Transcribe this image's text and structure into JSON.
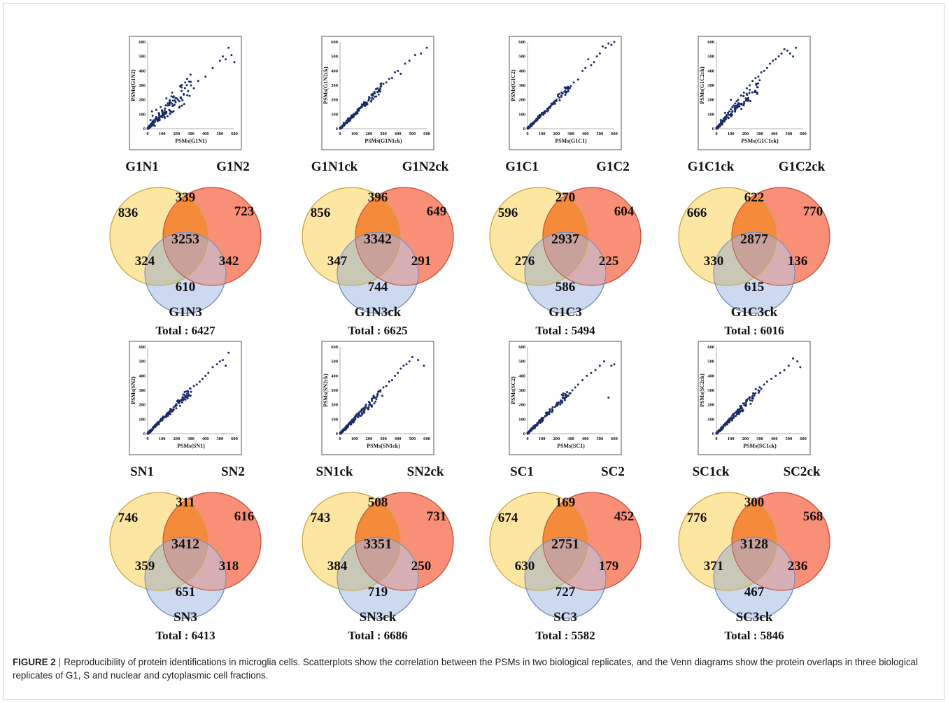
{
  "caption": {
    "label": "FIGURE 2",
    "separator": "|",
    "text": "Reproducibility of protein identifications in microglia cells. Scatterplots show the correlation between the PSMs in two biological replicates, and the Venn diagrams show the protein overlaps in three biological replicates of G1, S and nuclear and cytoplasmic cell fractions."
  },
  "colors": {
    "venn_a": "#fde39a",
    "venn_b": "#f9866a",
    "venn_c": "#cdd9ee",
    "points": "#1a2b6b"
  },
  "panels": [
    {
      "scatter": {
        "x_label": "PSMs(G1N1)",
        "y_label": "PSMs(G1N2)"
      },
      "venn": {
        "set_a": "G1N1",
        "set_b": "G1N2",
        "set_c": "G1N3",
        "only_a": "836",
        "only_b": "723",
        "only_c": "610",
        "ab": "339",
        "ac": "324",
        "bc": "342",
        "abc": "3253",
        "total": "Total : 6427"
      }
    },
    {
      "scatter": {
        "x_label": "PSMs(G1N1ck)",
        "y_label": "PSMs(G1N2ck)"
      },
      "venn": {
        "set_a": "G1N1ck",
        "set_b": "G1N2ck",
        "set_c": "G1N3ck",
        "only_a": "856",
        "only_b": "649",
        "only_c": "744",
        "ab": "396",
        "ac": "347",
        "bc": "291",
        "abc": "3342",
        "total": "Total : 6625"
      }
    },
    {
      "scatter": {
        "x_label": "PSMs(G1C1)",
        "y_label": "PSMs(G1C2)"
      },
      "venn": {
        "set_a": "G1C1",
        "set_b": "G1C2",
        "set_c": "G1C3",
        "only_a": "596",
        "only_b": "604",
        "only_c": "586",
        "ab": "270",
        "ac": "276",
        "bc": "225",
        "abc": "2937",
        "total": "Total : 5494"
      }
    },
    {
      "scatter": {
        "x_label": "PSMs(G1C1ck)",
        "y_label": "PSMs(G1C2ck)"
      },
      "venn": {
        "set_a": "G1C1ck",
        "set_b": "G1C2ck",
        "set_c": "G1C3ck",
        "only_a": "666",
        "only_b": "770",
        "only_c": "615",
        "ab": "622",
        "ac": "330",
        "bc": "136",
        "abc": "2877",
        "total": "Total : 6016"
      }
    },
    {
      "scatter": {
        "x_label": "PSMs(SN1)",
        "y_label": "PSMs(SN2)"
      },
      "venn": {
        "set_a": "SN1",
        "set_b": "SN2",
        "set_c": "SN3",
        "only_a": "746",
        "only_b": "616",
        "only_c": "651",
        "ab": "311",
        "ac": "359",
        "bc": "318",
        "abc": "3412",
        "total": "Total : 6413"
      }
    },
    {
      "scatter": {
        "x_label": "PSMs(SN1ck)",
        "y_label": "PSMs(SN2ck)"
      },
      "venn": {
        "set_a": "SN1ck",
        "set_b": "SN2ck",
        "set_c": "SN3ck",
        "only_a": "743",
        "only_b": "731",
        "only_c": "719",
        "ab": "508",
        "ac": "384",
        "bc": "250",
        "abc": "3351",
        "total": "Total : 6686"
      }
    },
    {
      "scatter": {
        "x_label": "PSMs(SC1)",
        "y_label": "PSMs(SC2)"
      },
      "venn": {
        "set_a": "SC1",
        "set_b": "SC2",
        "set_c": "SC3",
        "only_a": "674",
        "only_b": "452",
        "only_c": "727",
        "ab": "169",
        "ac": "630",
        "bc": "179",
        "abc": "2751",
        "total": "Total : 5582"
      }
    },
    {
      "scatter": {
        "x_label": "PSMs(SC1ck)",
        "y_label": "PSMs(SC2ck)"
      },
      "venn": {
        "set_a": "SC1ck",
        "set_b": "SC2ck",
        "set_c": "SC3ck",
        "only_a": "776",
        "only_b": "568",
        "only_c": "467",
        "ab": "300",
        "ac": "371",
        "bc": "236",
        "abc": "3128",
        "total": "Total : 5846"
      }
    }
  ],
  "chart_data": {
    "type": "scatter",
    "axis_ticks": [
      "0",
      "100",
      "200",
      "300",
      "400",
      "500",
      "600"
    ],
    "xlim": [
      0,
      600
    ],
    "ylim": [
      0,
      600
    ],
    "grid": false,
    "note_points": "each scatter shows several hundred proteins clustered along the diagonal; representative point sets per panel",
    "series": [
      {
        "x": [
          5,
          8,
          12,
          15,
          18,
          22,
          25,
          30,
          35,
          40,
          45,
          50,
          55,
          60,
          70,
          80,
          90,
          100,
          110,
          120,
          130,
          140,
          150,
          160,
          180,
          200,
          220,
          250,
          280,
          300,
          320,
          350,
          400,
          450,
          500,
          520,
          540,
          560,
          580,
          600,
          20,
          35,
          60,
          90,
          130,
          170,
          210,
          260,
          30,
          50
        ],
        "y": [
          8,
          12,
          20,
          10,
          25,
          30,
          18,
          40,
          45,
          38,
          60,
          52,
          70,
          80,
          65,
          100,
          85,
          120,
          95,
          140,
          115,
          160,
          130,
          180,
          160,
          210,
          190,
          240,
          260,
          300,
          280,
          330,
          360,
          420,
          470,
          500,
          480,
          560,
          510,
          460,
          60,
          90,
          130,
          150,
          210,
          250,
          200,
          320,
          120,
          20
        ]
      },
      {
        "x": [
          5,
          10,
          15,
          20,
          25,
          30,
          40,
          50,
          60,
          70,
          80,
          90,
          100,
          110,
          120,
          130,
          140,
          150,
          160,
          170,
          180,
          200,
          220,
          240,
          260,
          280,
          300,
          320,
          340,
          360,
          380,
          400,
          420,
          450,
          480,
          520,
          560,
          600,
          25,
          55
        ],
        "y": [
          6,
          12,
          15,
          22,
          28,
          30,
          42,
          50,
          62,
          68,
          80,
          92,
          98,
          112,
          118,
          130,
          142,
          148,
          162,
          170,
          178,
          205,
          215,
          245,
          255,
          290,
          310,
          320,
          345,
          350,
          390,
          400,
          380,
          450,
          470,
          510,
          520,
          560,
          40,
          70
        ]
      },
      {
        "x": [
          5,
          8,
          12,
          18,
          25,
          30,
          40,
          50,
          60,
          70,
          80,
          90,
          100,
          110,
          120,
          140,
          160,
          180,
          200,
          220,
          240,
          260,
          280,
          300,
          320,
          350,
          380,
          400,
          420,
          440,
          460,
          480,
          500,
          520,
          540,
          560,
          580,
          600
        ],
        "y": [
          6,
          10,
          14,
          20,
          26,
          32,
          40,
          52,
          58,
          72,
          80,
          88,
          102,
          108,
          122,
          140,
          158,
          182,
          200,
          215,
          245,
          260,
          290,
          295,
          320,
          340,
          400,
          420,
          480,
          440,
          460,
          500,
          520,
          570,
          560,
          590,
          580,
          600
        ]
      },
      {
        "x": [
          5,
          10,
          15,
          20,
          30,
          40,
          50,
          60,
          70,
          80,
          90,
          100,
          110,
          120,
          130,
          140,
          150,
          170,
          190,
          210,
          230,
          250,
          270,
          290,
          310,
          330,
          350,
          370,
          390,
          410,
          430,
          450,
          470,
          490,
          510,
          530,
          550,
          30,
          60,
          100
        ],
        "y": [
          8,
          15,
          22,
          30,
          45,
          55,
          70,
          80,
          95,
          110,
          120,
          135,
          150,
          160,
          175,
          190,
          200,
          230,
          250,
          280,
          300,
          330,
          350,
          360,
          390,
          400,
          420,
          450,
          470,
          480,
          500,
          520,
          550,
          540,
          520,
          500,
          560,
          60,
          110,
          200
        ]
      },
      {
        "x": [
          5,
          10,
          15,
          20,
          30,
          40,
          50,
          60,
          70,
          80,
          90,
          100,
          110,
          120,
          130,
          140,
          150,
          160,
          180,
          200,
          220,
          240,
          260,
          280,
          300,
          320,
          340,
          360,
          380,
          400,
          420,
          450,
          480,
          500,
          520,
          540,
          560
        ],
        "y": [
          6,
          12,
          16,
          22,
          30,
          42,
          50,
          62,
          72,
          78,
          90,
          100,
          112,
          118,
          132,
          140,
          152,
          160,
          182,
          198,
          220,
          238,
          262,
          280,
          290,
          330,
          340,
          360,
          380,
          400,
          420,
          460,
          480,
          500,
          510,
          470,
          560
        ]
      },
      {
        "x": [
          5,
          10,
          15,
          20,
          30,
          40,
          50,
          60,
          70,
          80,
          90,
          100,
          110,
          120,
          130,
          140,
          150,
          160,
          180,
          200,
          220,
          240,
          260,
          280,
          300,
          320,
          340,
          360,
          380,
          400,
          420,
          440,
          460,
          480,
          500,
          540,
          580
        ],
        "y": [
          8,
          14,
          20,
          28,
          36,
          48,
          58,
          66,
          80,
          92,
          100,
          112,
          125,
          132,
          145,
          155,
          168,
          175,
          200,
          220,
          240,
          250,
          275,
          300,
          320,
          330,
          360,
          370,
          400,
          420,
          450,
          470,
          480,
          500,
          530,
          510,
          470
        ]
      },
      {
        "x": [
          5,
          10,
          15,
          20,
          30,
          40,
          50,
          60,
          70,
          80,
          90,
          100,
          110,
          120,
          130,
          140,
          150,
          170,
          190,
          210,
          230,
          250,
          270,
          290,
          310,
          330,
          350,
          380,
          410,
          440,
          470,
          500,
          530,
          560,
          580,
          600
        ],
        "y": [
          5,
          10,
          14,
          20,
          28,
          40,
          48,
          60,
          66,
          80,
          88,
          100,
          108,
          120,
          128,
          140,
          150,
          170,
          185,
          205,
          230,
          245,
          265,
          280,
          300,
          320,
          340,
          370,
          400,
          420,
          440,
          470,
          500,
          250,
          470,
          480
        ]
      },
      {
        "x": [
          5,
          10,
          15,
          20,
          30,
          40,
          50,
          60,
          70,
          80,
          90,
          100,
          110,
          120,
          130,
          140,
          150,
          170,
          190,
          210,
          230,
          250,
          270,
          290,
          310,
          330,
          350,
          380,
          410,
          440,
          470,
          500,
          530,
          560,
          580
        ],
        "y": [
          8,
          14,
          20,
          26,
          38,
          48,
          60,
          70,
          80,
          92,
          104,
          112,
          125,
          135,
          145,
          155,
          165,
          185,
          210,
          230,
          250,
          260,
          280,
          300,
          310,
          340,
          360,
          380,
          400,
          420,
          440,
          470,
          520,
          500,
          460
        ]
      }
    ]
  }
}
